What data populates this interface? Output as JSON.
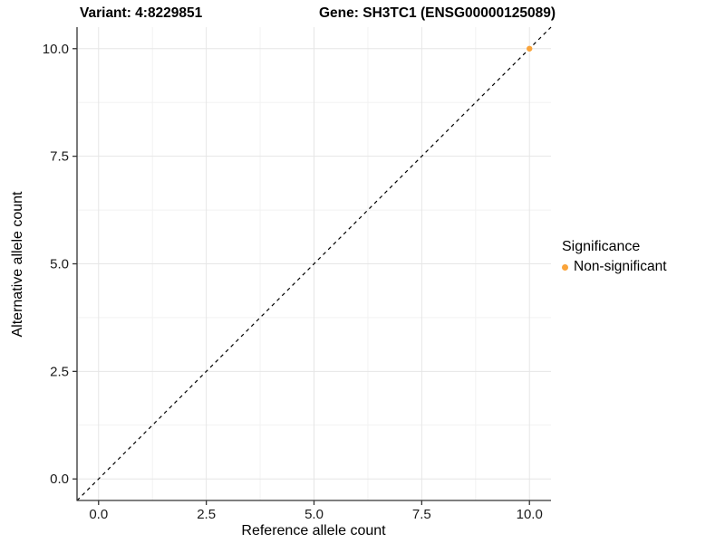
{
  "figure": {
    "title_left": "Variant: 4:8229851",
    "title_right": "Gene: SH3TC1 (ENSG00000125089)"
  },
  "chart_data": {
    "type": "scatter",
    "title": "Variant: 4:8229851    Gene: SH3TC1 (ENSG00000125089)",
    "xlabel": "Reference allele count",
    "ylabel": "Alternative allele count",
    "xlim": [
      -0.5,
      10.5
    ],
    "ylim": [
      -0.5,
      10.5
    ],
    "x_ticks": [
      0.0,
      2.5,
      5.0,
      7.5,
      10.0
    ],
    "y_ticks": [
      0.0,
      2.5,
      5.0,
      7.5,
      10.0
    ],
    "x_tick_labels": [
      "0.0",
      "2.5",
      "5.0",
      "7.5",
      "10.0"
    ],
    "y_tick_labels": [
      "0.0",
      "2.5",
      "5.0",
      "7.5",
      "10.0"
    ],
    "minor_ticks": [
      1.25,
      3.75,
      6.25,
      8.75
    ],
    "grid": true,
    "series": [
      {
        "name": "Non-significant",
        "color": "#FAA43A",
        "points": [
          [
            10,
            10
          ]
        ]
      }
    ],
    "reference_line": {
      "type": "identity",
      "from": [
        -0.5,
        -0.5
      ],
      "to": [
        10.5,
        10.5
      ],
      "style": "dashed",
      "color": "#000000"
    },
    "legend": {
      "title": "Significance",
      "position": "right",
      "items": [
        {
          "label": "Non-significant",
          "color": "#FAA43A"
        }
      ]
    },
    "colors": {
      "grid_major": "#E6E6E6",
      "grid_minor": "#F2F2F2",
      "axis_line": "#333333",
      "tick_mark": "#333333",
      "tick_label": "#1a1a1a",
      "background": "#FFFFFF"
    }
  }
}
